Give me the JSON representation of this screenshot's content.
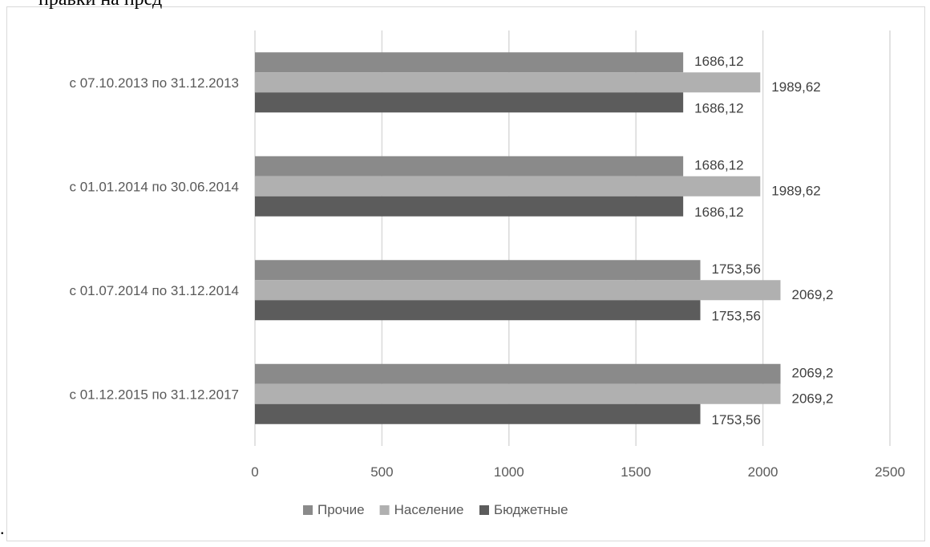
{
  "header_text": "правки на пред",
  "trailing_dot": ".",
  "chart_data": {
    "type": "bar",
    "orientation": "horizontal",
    "categories": [
      "с 07.10.2013 по 31.12.2013",
      "с 01.01.2014 по 30.06.2014",
      "с 01.07.2014 по 31.12.2014",
      "с 01.12.2015 по 31.12.2017"
    ],
    "series": [
      {
        "name": "Прочие",
        "color": "#8a8a8a",
        "values": [
          1686.12,
          1686.12,
          1753.56,
          2069.2
        ],
        "labels": [
          "1686,12",
          "1686,12",
          "1753,56",
          "2069,2"
        ]
      },
      {
        "name": "Население",
        "color": "#b0b0b0",
        "values": [
          1989.62,
          1989.62,
          2069.2,
          2069.2
        ],
        "labels": [
          "1989,62",
          "1989,62",
          "2069,2",
          "2069,2"
        ]
      },
      {
        "name": "Бюджетные",
        "color": "#5c5c5c",
        "values": [
          1686.12,
          1686.12,
          1753.56,
          1753.56
        ],
        "labels": [
          "1686,12",
          "1686,12",
          "1753,56",
          "1753,56"
        ]
      }
    ],
    "xlim": [
      0,
      2500
    ],
    "xticks": [
      "0",
      "500",
      "1000",
      "1500",
      "2000",
      "2500"
    ],
    "grid": true,
    "legend": "bottom",
    "data_labels": true
  }
}
